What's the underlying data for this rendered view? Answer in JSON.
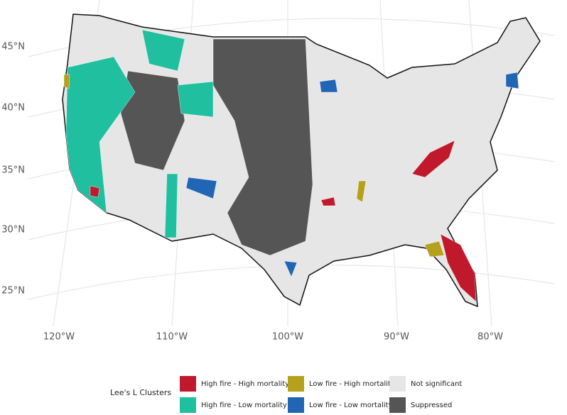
{
  "map": {
    "lat_labels": [
      "45°N",
      "40°N",
      "35°N",
      "30°N",
      "25°N"
    ],
    "lon_labels": [
      "120°W",
      "110°W",
      "100°W",
      "90°W",
      "80°W"
    ]
  },
  "legend": {
    "title": "Lee's L Clusters",
    "items": [
      {
        "label": "High fire - High mortality",
        "color": "#c0192b"
      },
      {
        "label": "Low fire - High mortality",
        "color": "#b5a11b"
      },
      {
        "label": "Not significant",
        "color": "#e6e6e6"
      },
      {
        "label": "High fire - Low mortality",
        "color": "#1fbfa0"
      },
      {
        "label": "Low fire - Low mortality",
        "color": "#2166b5"
      },
      {
        "label": "Suppressed",
        "color": "#555555"
      }
    ]
  }
}
